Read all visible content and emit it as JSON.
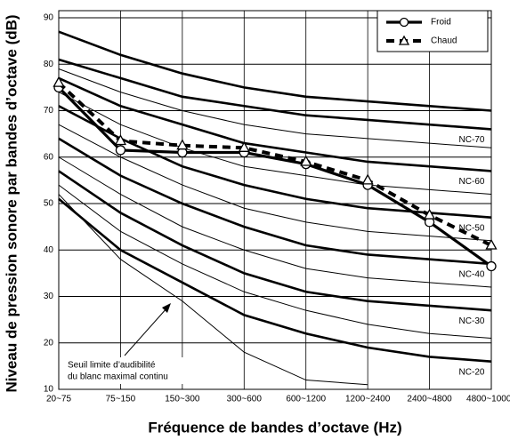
{
  "chart_data": {
    "type": "line",
    "x_label": "Fréquence de bandes d’octave (Hz)",
    "y_label": "Niveau de pression sonore par bandes d’octave (dB)",
    "categories": [
      "20~75",
      "75~150",
      "150~300",
      "300~600",
      "600~1200",
      "1200~2400",
      "2400~4800",
      "4800~10000"
    ],
    "ylim": [
      10,
      90
    ],
    "yticks": [
      10,
      20,
      30,
      40,
      50,
      60,
      70,
      80,
      90
    ],
    "grid": true,
    "legend": "top-right",
    "series": [
      {
        "name": "Froid",
        "color": "#000000",
        "marker": "circle",
        "dashed": false,
        "values": [
          75,
          61.5,
          61,
          61,
          58.5,
          54,
          46,
          36.5
        ]
      },
      {
        "name": "Chaud",
        "color": "#000000",
        "marker": "triangle",
        "dashed": true,
        "values": [
          76,
          63.5,
          62.5,
          62,
          59,
          55,
          47.5,
          41
        ]
      }
    ],
    "nc_curves": [
      {
        "values": [
          87,
          82,
          78,
          75,
          73,
          72,
          71,
          70
        ],
        "bold": true
      },
      {
        "label": "NC-70",
        "values": [
          81,
          77,
          73,
          71,
          69,
          68,
          67,
          66
        ],
        "bold": true
      },
      {
        "values": [
          79,
          74,
          70,
          67,
          65,
          64,
          63,
          62
        ],
        "bold": false
      },
      {
        "label": "NC-60",
        "values": [
          77,
          71,
          67,
          63,
          61,
          59,
          58,
          57
        ],
        "bold": true
      },
      {
        "values": [
          74,
          67,
          62,
          58,
          56,
          54,
          53,
          52
        ],
        "bold": false
      },
      {
        "label": "NC-50",
        "values": [
          71,
          64,
          58,
          54,
          51,
          49,
          48,
          47
        ],
        "bold": true
      },
      {
        "values": [
          67,
          60,
          54,
          49,
          46,
          44,
          43,
          42
        ],
        "bold": false
      },
      {
        "label": "NC-40",
        "values": [
          64,
          56,
          50,
          45,
          41,
          39,
          38,
          37
        ],
        "bold": true
      },
      {
        "values": [
          60,
          52,
          45,
          40,
          36,
          34,
          33,
          32
        ],
        "bold": false
      },
      {
        "label": "NC-30",
        "values": [
          57,
          48,
          41,
          35,
          31,
          29,
          28,
          27
        ],
        "bold": true
      },
      {
        "values": [
          54,
          44,
          37,
          31,
          27,
          24,
          22,
          21
        ],
        "bold": false
      },
      {
        "label": "NC-20",
        "values": [
          51,
          40,
          33,
          26,
          22,
          19,
          17,
          16
        ],
        "bold": true
      },
      {
        "values": [
          52,
          38,
          29,
          18,
          12,
          11,
          null,
          null
        ],
        "bold": false
      }
    ],
    "annotation": [
      "Seuil limite d’audibilité",
      "du blanc maximal continu"
    ]
  }
}
